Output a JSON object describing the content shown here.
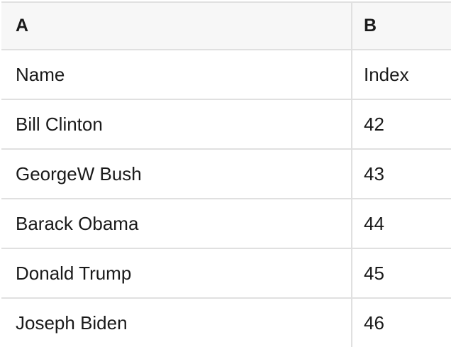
{
  "colors": {
    "header_bg": "#f7f7f7",
    "border": "#e0e0e0",
    "text": "#1a1a1a",
    "cell_bg": "#ffffff"
  },
  "table": {
    "header": [
      "A",
      "B"
    ],
    "rows": [
      [
        "Name",
        "Index"
      ],
      [
        "Bill Clinton",
        "42"
      ],
      [
        "GeorgeW Bush",
        "43"
      ],
      [
        "Barack Obama",
        "44"
      ],
      [
        "Donald Trump",
        "45"
      ],
      [
        "Joseph Biden",
        "46"
      ]
    ]
  }
}
